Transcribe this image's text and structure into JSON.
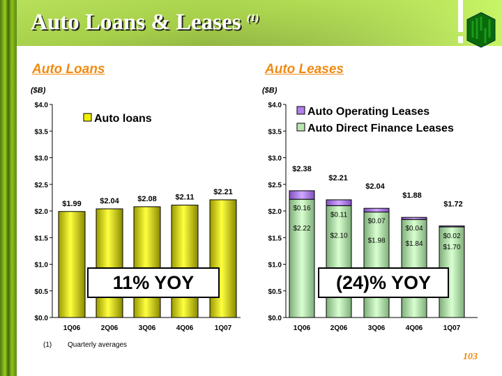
{
  "title": "Auto Loans & Leases",
  "title_footnote": "(1)",
  "colors": {
    "accent": "#f08a12",
    "loans": "#f0f000",
    "operating": "#b080e8",
    "direct": "#b8e8b0"
  },
  "logo_icon": "huntington-logo-icon",
  "callouts": {
    "loans_yoy": "11% YOY",
    "leases_yoy": "(24)% YOY"
  },
  "footnote": {
    "marker": "(1)",
    "text": "Quarterly averages"
  },
  "page_number": "103",
  "chart_data": [
    {
      "type": "bar",
      "title": "Auto Loans",
      "ylabel": "($B)",
      "ylim": [
        0,
        4.0
      ],
      "yticks": [
        "$0.0",
        "$0.5",
        "$1.0",
        "$1.5",
        "$2.0",
        "$2.5",
        "$3.0",
        "$3.5",
        "$4.0"
      ],
      "categories": [
        "1Q06",
        "2Q06",
        "3Q06",
        "4Q06",
        "1Q07"
      ],
      "legend": "top-center",
      "series": [
        {
          "name": "Auto loans",
          "values": [
            1.99,
            2.04,
            2.08,
            2.11,
            2.21
          ],
          "labels": [
            "$1.99",
            "$2.04",
            "$2.08",
            "$2.11",
            "$2.21"
          ]
        }
      ]
    },
    {
      "type": "bar",
      "stacked": true,
      "title": "Auto Leases",
      "ylabel": "($B)",
      "ylim": [
        0,
        4.0
      ],
      "yticks": [
        "$0.0",
        "$0.5",
        "$1.0",
        "$1.5",
        "$2.0",
        "$2.5",
        "$3.0",
        "$3.5",
        "$4.0"
      ],
      "categories": [
        "1Q06",
        "2Q06",
        "3Q06",
        "4Q06",
        "1Q07"
      ],
      "legend": "top-right",
      "series": [
        {
          "name": "Auto Direct Finance Leases",
          "values": [
            2.22,
            2.1,
            1.98,
            1.84,
            1.7
          ],
          "labels": [
            "$2.22",
            "$2.10",
            "$1.98",
            "$1.84",
            "$1.70"
          ]
        },
        {
          "name": "Auto Operating Leases",
          "values": [
            0.16,
            0.11,
            0.07,
            0.04,
            0.02
          ],
          "labels": [
            "$0.16",
            "$0.11",
            "$0.07",
            "$0.04",
            "$0.02"
          ]
        }
      ],
      "totals": [
        "$2.38",
        "$2.21",
        "$2.04",
        "$1.88",
        "$1.72"
      ]
    }
  ]
}
